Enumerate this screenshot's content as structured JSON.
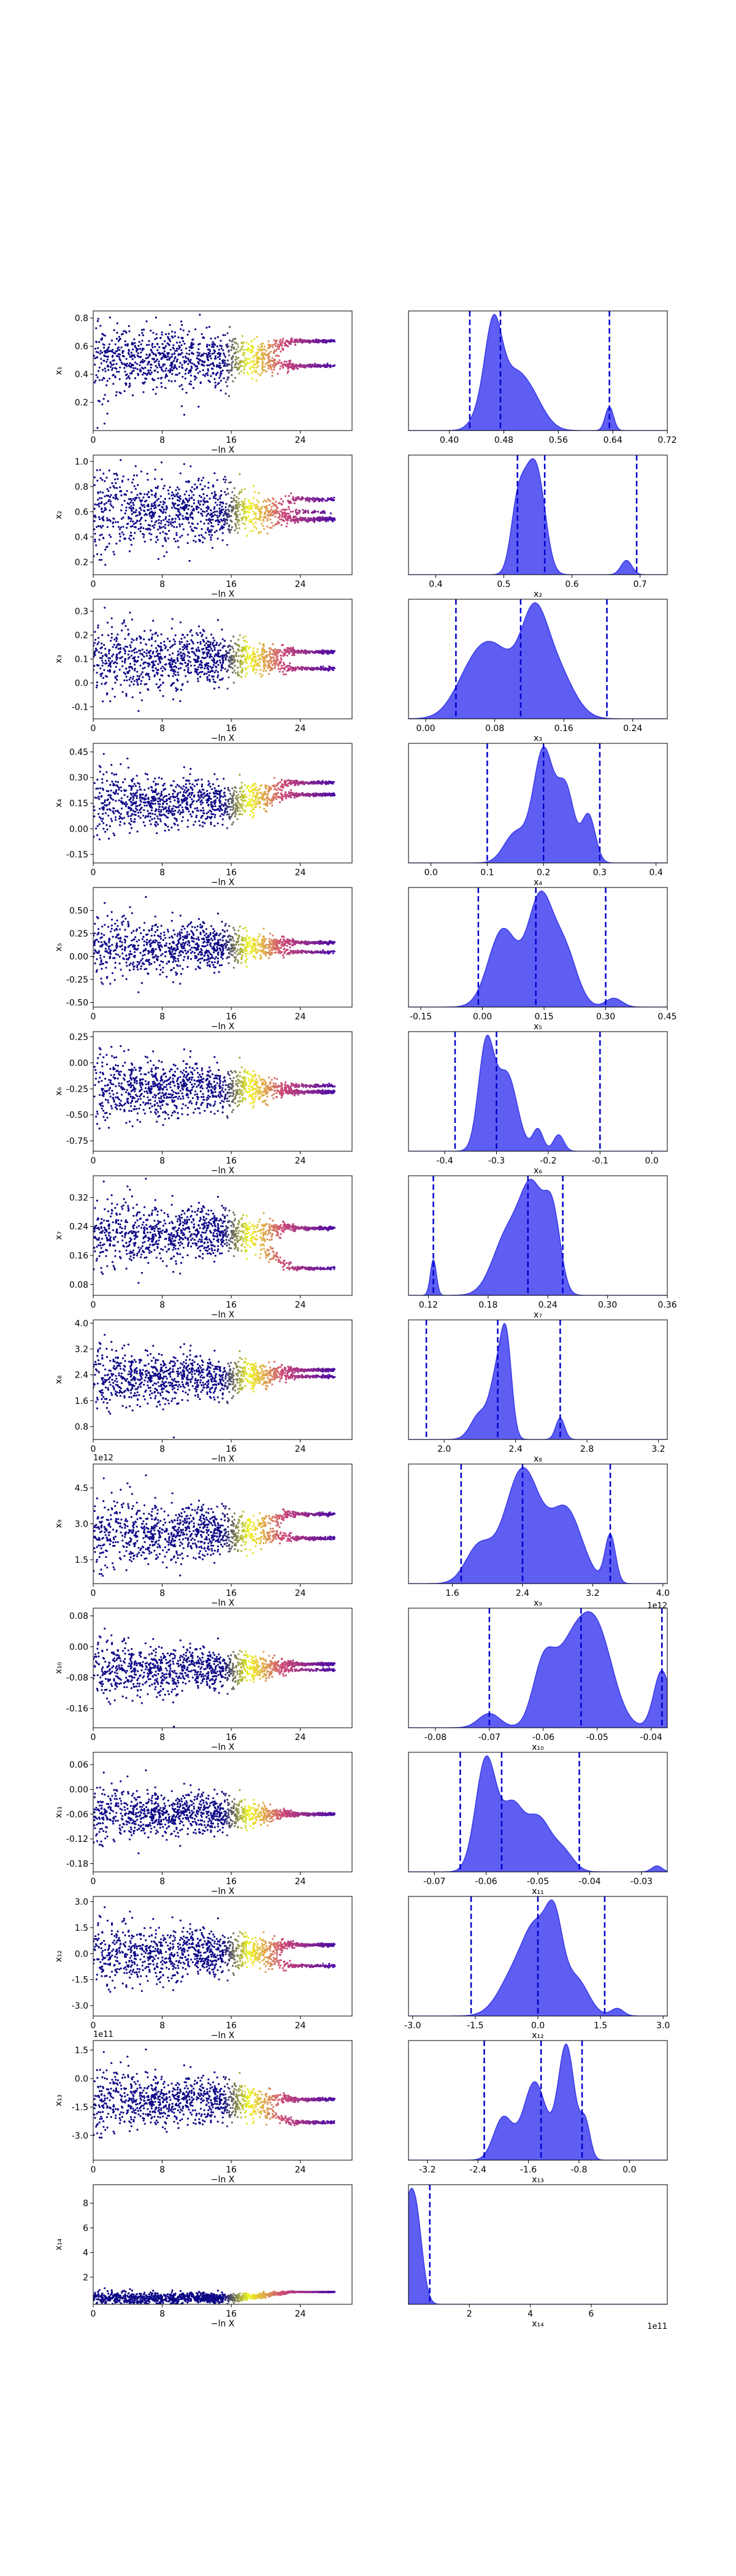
{
  "colors": {
    "kde_fill": "#4c4cf2",
    "kde_edge": "#3a3ae8",
    "quantile_line": "#0000cc",
    "scatter_low": "#0d0887",
    "scatter_mid": "#cc4778",
    "scatter_high": "#f0f921"
  },
  "trace_x_axis": {
    "label": "−ln X",
    "ticks": [
      "0",
      "8",
      "16",
      "24"
    ],
    "range": [
      0,
      30
    ]
  },
  "chart_data": [
    {
      "type": "scatter",
      "param": "x1",
      "ylabel": "x₁",
      "yrange": [
        0.0,
        0.85
      ],
      "yticks": [
        "0.2",
        "0.4",
        "0.6",
        "0.8"
      ],
      "yvals": [
        0.2,
        0.4,
        0.6,
        0.8
      ],
      "center": 0.5,
      "spread": 0.14,
      "tails": [
        [
          0.635,
          0.5
        ],
        [
          0.46,
          0.5
        ]
      ],
      "hist": {
        "type": "area",
        "xlabel": "",
        "xrange": [
          0.34,
          0.72
        ],
        "xticks": [
          "0.40",
          "0.48",
          "0.56",
          "0.64",
          "0.72"
        ],
        "xvals": [
          0.4,
          0.48,
          0.56,
          0.64,
          0.72
        ],
        "quantiles": [
          0.43,
          0.475,
          0.635
        ],
        "peaks": [
          [
            0.465,
            0.95,
            0.012
          ],
          [
            0.49,
            0.55,
            0.02
          ],
          [
            0.52,
            0.35,
            0.02
          ],
          [
            0.635,
            0.28,
            0.006
          ],
          [
            0.45,
            0.25,
            0.015
          ]
        ]
      }
    },
    {
      "type": "scatter",
      "param": "x2",
      "ylabel": "x₂",
      "yrange": [
        0.1,
        1.05
      ],
      "yticks": [
        "0.2",
        "0.4",
        "0.6",
        "0.8",
        "1.0"
      ],
      "yvals": [
        0.2,
        0.4,
        0.6,
        0.8,
        1.0
      ],
      "center": 0.6,
      "spread": 0.18,
      "tails": [
        [
          0.54,
          0.6
        ],
        [
          0.7,
          0.25
        ]
      ],
      "hist": {
        "type": "area",
        "xlabel": "x₂",
        "xrange": [
          0.36,
          0.74
        ],
        "xticks": [
          "0.4",
          "0.5",
          "0.6",
          "0.7"
        ],
        "xvals": [
          0.4,
          0.5,
          0.6,
          0.7
        ],
        "quantiles": [
          0.52,
          0.56,
          0.695
        ],
        "peaks": [
          [
            0.52,
            0.7,
            0.01
          ],
          [
            0.55,
            0.95,
            0.012
          ],
          [
            0.68,
            0.15,
            0.008
          ],
          [
            0.535,
            0.5,
            0.01
          ]
        ]
      }
    },
    {
      "type": "scatter",
      "param": "x3",
      "ylabel": "x₃",
      "yrange": [
        -0.15,
        0.35
      ],
      "yticks": [
        "-0.1",
        "0.0",
        "0.1",
        "0.2",
        "0.3"
      ],
      "yvals": [
        -0.1,
        0.0,
        0.1,
        0.2,
        0.3
      ],
      "center": 0.1,
      "spread": 0.08,
      "tails": [
        [
          0.13,
          0.5
        ],
        [
          0.06,
          0.5
        ]
      ],
      "hist": {
        "type": "area",
        "xlabel": "x₃",
        "xrange": [
          -0.02,
          0.28
        ],
        "xticks": [
          "0.00",
          "0.08",
          "0.16",
          "0.24"
        ],
        "xvals": [
          0.0,
          0.08,
          0.16,
          0.24
        ],
        "quantiles": [
          0.035,
          0.11,
          0.21
        ],
        "peaks": [
          [
            0.08,
            0.8,
            0.025
          ],
          [
            0.125,
            0.95,
            0.015
          ],
          [
            0.15,
            0.6,
            0.02
          ],
          [
            0.05,
            0.3,
            0.02
          ]
        ]
      }
    },
    {
      "type": "scatter",
      "param": "x4",
      "ylabel": "x₄",
      "yrange": [
        -0.2,
        0.5
      ],
      "yticks": [
        "-0.15",
        "0.00",
        "0.15",
        "0.30",
        "0.45"
      ],
      "yvals": [
        -0.15,
        0.0,
        0.15,
        0.3,
        0.45
      ],
      "center": 0.15,
      "spread": 0.1,
      "tails": [
        [
          0.27,
          0.5
        ],
        [
          0.2,
          0.5
        ]
      ],
      "hist": {
        "type": "area",
        "xlabel": "x₄",
        "xrange": [
          -0.04,
          0.42
        ],
        "xticks": [
          "0.0",
          "0.1",
          "0.2",
          "0.3",
          "0.4"
        ],
        "xvals": [
          0.0,
          0.1,
          0.2,
          0.3,
          0.4
        ],
        "quantiles": [
          0.1,
          0.2,
          0.3
        ],
        "peaks": [
          [
            0.2,
            0.95,
            0.018
          ],
          [
            0.24,
            0.6,
            0.015
          ],
          [
            0.28,
            0.4,
            0.012
          ],
          [
            0.15,
            0.25,
            0.02
          ]
        ]
      }
    },
    {
      "type": "scatter",
      "param": "x5",
      "ylabel": "x₅",
      "yrange": [
        -0.55,
        0.75
      ],
      "yticks": [
        "-0.50",
        "-0.25",
        "0.00",
        "0.25",
        "0.50"
      ],
      "yvals": [
        -0.5,
        -0.25,
        0.0,
        0.25,
        0.5
      ],
      "center": 0.1,
      "spread": 0.18,
      "tails": [
        [
          0.15,
          0.6
        ],
        [
          0.05,
          0.4
        ]
      ],
      "hist": {
        "type": "area",
        "xlabel": "x₅",
        "xrange": [
          -0.18,
          0.45
        ],
        "xticks": [
          "-0.15",
          "0.00",
          "0.15",
          "0.30",
          "0.45"
        ],
        "xvals": [
          -0.15,
          0.0,
          0.15,
          0.3,
          0.45
        ],
        "quantiles": [
          -0.01,
          0.13,
          0.3
        ],
        "peaks": [
          [
            0.14,
            0.95,
            0.03
          ],
          [
            0.05,
            0.7,
            0.035
          ],
          [
            0.2,
            0.5,
            0.03
          ],
          [
            0.32,
            0.08,
            0.02
          ]
        ]
      }
    },
    {
      "type": "scatter",
      "param": "x6",
      "ylabel": "x₆",
      "yrange": [
        -0.85,
        0.3
      ],
      "yticks": [
        "-0.75",
        "-0.50",
        "-0.25",
        "0.00",
        "0.25"
      ],
      "yvals": [
        -0.75,
        -0.5,
        -0.25,
        0.0,
        0.25
      ],
      "center": -0.25,
      "spread": 0.18,
      "tails": [
        [
          -0.28,
          0.7
        ],
        [
          -0.22,
          0.3
        ]
      ],
      "hist": {
        "type": "area",
        "xlabel": "x₆",
        "xrange": [
          -0.47,
          0.03
        ],
        "xticks": [
          "-0.4",
          "-0.3",
          "-0.2",
          "-0.1",
          "0.0"
        ],
        "xvals": [
          -0.4,
          -0.3,
          -0.2,
          -0.1,
          0.0
        ],
        "quantiles": [
          -0.38,
          -0.3,
          -0.1
        ],
        "peaks": [
          [
            -0.32,
            0.95,
            0.015
          ],
          [
            -0.28,
            0.7,
            0.02
          ],
          [
            -0.22,
            0.2,
            0.01
          ],
          [
            -0.18,
            0.15,
            0.01
          ]
        ]
      }
    },
    {
      "type": "scatter",
      "param": "x7",
      "ylabel": "x₇",
      "yrange": [
        0.05,
        0.38
      ],
      "yticks": [
        "0.08",
        "0.16",
        "0.24",
        "0.32"
      ],
      "yvals": [
        0.08,
        0.16,
        0.24,
        0.32
      ],
      "center": 0.22,
      "spread": 0.05,
      "tails": [
        [
          0.235,
          0.6
        ],
        [
          0.125,
          0.4
        ]
      ],
      "hist": {
        "type": "area",
        "xlabel": "x₇",
        "xrange": [
          0.1,
          0.36
        ],
        "xticks": [
          "0.12",
          "0.18",
          "0.24",
          "0.30",
          "0.36"
        ],
        "xvals": [
          0.12,
          0.18,
          0.24,
          0.3,
          0.36
        ],
        "quantiles": [
          0.125,
          0.22,
          0.255
        ],
        "peaks": [
          [
            0.125,
            0.35,
            0.003
          ],
          [
            0.225,
            0.95,
            0.012
          ],
          [
            0.2,
            0.6,
            0.015
          ],
          [
            0.245,
            0.7,
            0.008
          ]
        ]
      }
    },
    {
      "type": "scatter",
      "param": "x8",
      "ylabel": "x₈",
      "yrange": [
        0.4,
        4.1
      ],
      "yticks": [
        "0.8",
        "1.6",
        "2.4",
        "3.2",
        "4.0"
      ],
      "yvals": [
        0.8,
        1.6,
        2.4,
        3.2,
        4.0
      ],
      "center": 2.3,
      "spread": 0.5,
      "tails": [
        [
          2.55,
          0.6
        ],
        [
          2.35,
          0.4
        ]
      ],
      "hist": {
        "type": "area",
        "xlabel": "x₈",
        "xrange": [
          1.8,
          3.25
        ],
        "xticks": [
          "2.0",
          "2.4",
          "2.8",
          "3.2"
        ],
        "xvals": [
          2.0,
          2.4,
          2.8,
          3.2
        ],
        "quantiles": [
          1.9,
          2.3,
          2.65
        ],
        "peaks": [
          [
            2.3,
            0.75,
            0.04
          ],
          [
            2.35,
            0.95,
            0.03
          ],
          [
            2.65,
            0.25,
            0.025
          ],
          [
            2.2,
            0.3,
            0.05
          ]
        ]
      }
    },
    {
      "type": "scatter",
      "param": "x9",
      "ylabel": "x₉",
      "yrange": [
        0.5,
        5.5
      ],
      "yticks": [
        "1.5",
        "3.0",
        "4.5"
      ],
      "yvals": [
        1.5,
        3.0,
        4.5
      ],
      "center": 2.6,
      "spread": 0.8,
      "offset": "1e12",
      "tails": [
        [
          3.4,
          0.5
        ],
        [
          2.4,
          0.5
        ]
      ],
      "hist": {
        "type": "area",
        "xlabel": "x₉",
        "xrange": [
          1.1,
          4.05
        ],
        "xticks": [
          "1.6",
          "2.4",
          "3.2",
          "4.0"
        ],
        "xvals": [
          1.6,
          2.4,
          3.2,
          4.0
        ],
        "quantiles": [
          1.7,
          2.4,
          3.4
        ],
        "peaks": [
          [
            2.4,
            0.95,
            0.2
          ],
          [
            2.9,
            0.6,
            0.18
          ],
          [
            3.4,
            0.4,
            0.06
          ],
          [
            1.9,
            0.3,
            0.15
          ]
        ],
        "offset": "1e12"
      }
    },
    {
      "type": "scatter",
      "param": "x10",
      "ylabel": "x₁₀",
      "yrange": [
        -0.21,
        0.1
      ],
      "yticks": [
        "-0.16",
        "-0.08",
        "0.00",
        "0.08"
      ],
      "yvals": [
        -0.16,
        -0.08,
        0.0,
        0.08
      ],
      "center": -0.06,
      "spread": 0.04,
      "tails": [
        [
          -0.045,
          0.7
        ],
        [
          -0.06,
          0.3
        ]
      ],
      "hist": {
        "type": "area",
        "xlabel": "x₁₀",
        "xrange": [
          -0.085,
          -0.037
        ],
        "xticks": [
          "-0.08",
          "-0.07",
          "-0.06",
          "-0.05",
          "-0.04"
        ],
        "xvals": [
          -0.08,
          -0.07,
          -0.06,
          -0.05,
          -0.04
        ],
        "quantiles": [
          -0.07,
          -0.053,
          -0.038
        ],
        "peaks": [
          [
            -0.05,
            0.95,
            0.003
          ],
          [
            -0.055,
            0.75,
            0.003
          ],
          [
            -0.06,
            0.6,
            0.002
          ],
          [
            -0.07,
            0.15,
            0.002
          ],
          [
            -0.038,
            0.6,
            0.0015
          ]
        ]
      }
    },
    {
      "type": "scatter",
      "param": "x11",
      "ylabel": "x₁₁",
      "yrange": [
        -0.2,
        0.09
      ],
      "yticks": [
        "-0.18",
        "-0.12",
        "-0.06",
        "0.00",
        "0.06"
      ],
      "yvals": [
        -0.18,
        -0.12,
        -0.06,
        0.0,
        0.06
      ],
      "center": -0.06,
      "spread": 0.035,
      "tails": [
        [
          -0.06,
          1.0
        ]
      ],
      "hist": {
        "type": "area",
        "xlabel": "x₁₁",
        "xrange": [
          -0.075,
          -0.025
        ],
        "xticks": [
          "-0.07",
          "-0.06",
          "-0.05",
          "-0.04",
          "-0.03"
        ],
        "xvals": [
          -0.07,
          -0.06,
          -0.05,
          -0.04,
          -0.03
        ],
        "quantiles": [
          -0.065,
          -0.057,
          -0.042
        ],
        "peaks": [
          [
            -0.06,
            0.95,
            0.002
          ],
          [
            -0.055,
            0.5,
            0.002
          ],
          [
            -0.05,
            0.45,
            0.0025
          ],
          [
            -0.045,
            0.15,
            0.002
          ],
          [
            -0.027,
            0.05,
            0.001
          ]
        ]
      }
    },
    {
      "type": "scatter",
      "param": "x12",
      "ylabel": "x₁₂",
      "yrange": [
        -3.6,
        3.3
      ],
      "yticks": [
        "-3.0",
        "-1.5",
        "0.0",
        "1.5",
        "3.0"
      ],
      "yvals": [
        -3.0,
        -1.5,
        0.0,
        1.5,
        3.0
      ],
      "center": 0.0,
      "spread": 1.0,
      "tails": [
        [
          0.5,
          0.6
        ],
        [
          -0.7,
          0.4
        ]
      ],
      "hist": {
        "type": "area",
        "xlabel": "x₁₂",
        "xrange": [
          -3.1,
          3.1
        ],
        "xticks": [
          "-3.0",
          "-1.5",
          "0.0",
          "1.5",
          "3.0"
        ],
        "xvals": [
          -3.0,
          -1.5,
          0.0,
          1.5,
          3.0
        ],
        "quantiles": [
          -1.6,
          0.0,
          1.6
        ],
        "peaks": [
          [
            0.0,
            0.9,
            0.3
          ],
          [
            0.4,
            0.95,
            0.2
          ],
          [
            -0.5,
            0.6,
            0.4
          ],
          [
            0.9,
            0.5,
            0.3
          ],
          [
            1.9,
            0.1,
            0.15
          ]
        ]
      }
    },
    {
      "type": "scatter",
      "param": "x13",
      "ylabel": "x₁₃",
      "yrange": [
        -4.3,
        2.0
      ],
      "yticks": [
        "-3.0",
        "-1.5",
        "0.0",
        "1.5"
      ],
      "yvals": [
        -3.0,
        -1.5,
        0.0,
        1.5
      ],
      "offset": "1e11",
      "center": -1.2,
      "spread": 0.9,
      "tails": [
        [
          -1.1,
          0.6
        ],
        [
          -2.3,
          0.4
        ]
      ],
      "hist": {
        "type": "area",
        "xlabel": "x₁₃",
        "xrange": [
          -3.5,
          0.6
        ],
        "xticks": [
          "-3.2",
          "-2.4",
          "-1.6",
          "-0.8",
          "0.0"
        ],
        "xvals": [
          -3.2,
          -2.4,
          -1.6,
          -0.8,
          0.0
        ],
        "quantiles": [
          -2.3,
          -1.4,
          -0.75
        ],
        "peaks": [
          [
            -1.0,
            0.95,
            0.13
          ],
          [
            -1.5,
            0.65,
            0.18
          ],
          [
            -2.0,
            0.35,
            0.15
          ],
          [
            -0.7,
            0.3,
            0.08
          ]
        ]
      }
    },
    {
      "type": "scatter",
      "param": "x14",
      "ylabel": "x₁₄",
      "yrange": [
        -0.2,
        9.5
      ],
      "yticks": [
        "2",
        "4",
        "6",
        "8"
      ],
      "yvals": [
        2,
        4,
        6,
        8
      ],
      "center": 0.3,
      "spread": 0.3,
      "tails": [
        [
          0.8,
          1.0
        ]
      ],
      "hist": {
        "type": "area",
        "xlabel": "x₁₄",
        "xrange": [
          0.0,
          8.5
        ],
        "xticks": [
          "2",
          "4",
          "6"
        ],
        "xvals": [
          2,
          4,
          6
        ],
        "quantiles": [
          0.7
        ],
        "peaks": [
          [
            0.0,
            0.95,
            0.25
          ],
          [
            0.3,
            0.5,
            0.2
          ]
        ],
        "offset": "1e11"
      }
    }
  ]
}
